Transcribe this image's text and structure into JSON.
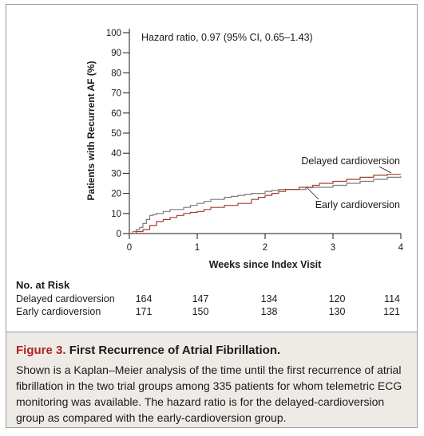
{
  "chart_data": {
    "type": "line",
    "annotation": "Hazard ratio, 0.97 (95% CI, 0.65–1.43)",
    "xlabel": "Weeks since Index Visit",
    "ylabel": "Patients with Recurrent AF (%)",
    "xlim": [
      0,
      4
    ],
    "ylim": [
      0,
      100
    ],
    "x_ticks": [
      "0",
      "1",
      "2",
      "3",
      "4"
    ],
    "y_ticks": [
      "0",
      "10",
      "20",
      "30",
      "40",
      "50",
      "60",
      "70",
      "80",
      "90",
      "100"
    ],
    "grid": false,
    "series": [
      {
        "name": "Delayed cardioversion",
        "color": "#7a7a7a",
        "points": [
          [
            0,
            0
          ],
          [
            0.05,
            1
          ],
          [
            0.1,
            2
          ],
          [
            0.15,
            3
          ],
          [
            0.2,
            5
          ],
          [
            0.25,
            7
          ],
          [
            0.3,
            9
          ],
          [
            0.35,
            9.5
          ],
          [
            0.4,
            10
          ],
          [
            0.5,
            11
          ],
          [
            0.6,
            12
          ],
          [
            0.7,
            12
          ],
          [
            0.8,
            13
          ],
          [
            0.9,
            14
          ],
          [
            1.0,
            15
          ],
          [
            1.1,
            16
          ],
          [
            1.2,
            17
          ],
          [
            1.3,
            17
          ],
          [
            1.4,
            18
          ],
          [
            1.5,
            18.5
          ],
          [
            1.6,
            19
          ],
          [
            1.7,
            19.5
          ],
          [
            1.8,
            20
          ],
          [
            1.9,
            20
          ],
          [
            2.0,
            21
          ],
          [
            2.1,
            21.5
          ],
          [
            2.2,
            22
          ],
          [
            2.4,
            22
          ],
          [
            2.6,
            23
          ],
          [
            2.8,
            23
          ],
          [
            3.0,
            24
          ],
          [
            3.2,
            25
          ],
          [
            3.4,
            26
          ],
          [
            3.6,
            27
          ],
          [
            3.8,
            28
          ],
          [
            4.0,
            28.5
          ]
        ]
      },
      {
        "name": "Early cardioversion",
        "color": "#a0402c",
        "points": [
          [
            0,
            0
          ],
          [
            0.1,
            1
          ],
          [
            0.2,
            2
          ],
          [
            0.3,
            4
          ],
          [
            0.4,
            6
          ],
          [
            0.5,
            7
          ],
          [
            0.6,
            8
          ],
          [
            0.7,
            9
          ],
          [
            0.8,
            10
          ],
          [
            0.9,
            10.5
          ],
          [
            1.0,
            11
          ],
          [
            1.1,
            12
          ],
          [
            1.2,
            13
          ],
          [
            1.4,
            14
          ],
          [
            1.6,
            15
          ],
          [
            1.8,
            17
          ],
          [
            1.9,
            18
          ],
          [
            2.0,
            19
          ],
          [
            2.1,
            20
          ],
          [
            2.2,
            21
          ],
          [
            2.3,
            22
          ],
          [
            2.5,
            23
          ],
          [
            2.7,
            24
          ],
          [
            2.8,
            25
          ],
          [
            3.0,
            26
          ],
          [
            3.2,
            27
          ],
          [
            3.4,
            28
          ],
          [
            3.6,
            29
          ],
          [
            3.8,
            29.5
          ],
          [
            4.0,
            29.5
          ]
        ]
      }
    ]
  },
  "at_risk": {
    "heading": "No. at Risk",
    "rows": [
      {
        "label": "Delayed cardioversion",
        "values": [
          "164",
          "147",
          "134",
          "120",
          "114"
        ]
      },
      {
        "label": "Early cardioversion",
        "values": [
          "171",
          "150",
          "138",
          "130",
          "121"
        ]
      }
    ]
  },
  "caption": {
    "figure_label": "Figure 3.",
    "title": "First Recurrence of Atrial Fibrillation.",
    "text": "Shown is a Kaplan–Meier analysis of the time until the first recurrence of atrial fibrillation in the two trial groups among 335 patients for whom telemetric ECG monitoring was available. The hazard ratio is for the delayed-cardioversion group as compared with the early-cardioversion group."
  }
}
